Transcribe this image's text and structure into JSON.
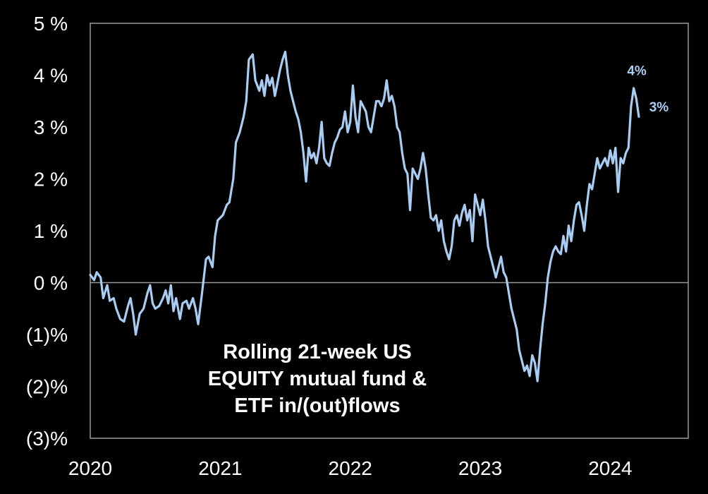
{
  "chart_data": {
    "type": "line",
    "title": "Rolling 21-week US EQUITY mutual fund & ETF in/(out)flows",
    "title_lines": [
      "Rolling 21-week US",
      "EQUITY mutual fund &",
      "ETF in/(out)flows"
    ],
    "y_ticks": [
      {
        "value": 5,
        "label": "5 %"
      },
      {
        "value": 4,
        "label": "4 %"
      },
      {
        "value": 3,
        "label": "3 %"
      },
      {
        "value": 2,
        "label": "2 %"
      },
      {
        "value": 1,
        "label": "1 %"
      },
      {
        "value": 0,
        "label": "0 %"
      },
      {
        "value": -1,
        "label": "(1)%"
      },
      {
        "value": -2,
        "label": "(2)%"
      },
      {
        "value": -3,
        "label": "(3)%"
      }
    ],
    "x_ticks": [
      {
        "value": 2020.0,
        "label": "2020"
      },
      {
        "value": 2021.0,
        "label": "2021"
      },
      {
        "value": 2022.0,
        "label": "2022"
      },
      {
        "value": 2023.0,
        "label": "2023"
      },
      {
        "value": 2024.0,
        "label": "2024"
      }
    ],
    "xlim": [
      2020.0,
      2024.6
    ],
    "ylim": [
      -3,
      5
    ],
    "grid": false,
    "zero_line": true,
    "line_color": "#a9cdf2",
    "axis_color": "#9a9a9a",
    "annotations": [
      {
        "label": "4%",
        "x": 2024.13,
        "y": 4.0
      },
      {
        "label": "3%",
        "x": 2024.3,
        "y": 3.3
      }
    ],
    "series": [
      {
        "points": [
          [
            2020.0,
            0.15
          ],
          [
            2020.03,
            0.05
          ],
          [
            2020.05,
            0.2
          ],
          [
            2020.08,
            0.1
          ],
          [
            2020.1,
            -0.3
          ],
          [
            2020.13,
            -0.05
          ],
          [
            2020.15,
            -0.35
          ],
          [
            2020.18,
            -0.3
          ],
          [
            2020.2,
            -0.5
          ],
          [
            2020.23,
            -0.7
          ],
          [
            2020.26,
            -0.75
          ],
          [
            2020.29,
            -0.45
          ],
          [
            2020.31,
            -0.3
          ],
          [
            2020.33,
            -0.6
          ],
          [
            2020.35,
            -1.0
          ],
          [
            2020.38,
            -0.6
          ],
          [
            2020.41,
            -0.5
          ],
          [
            2020.44,
            -0.2
          ],
          [
            2020.46,
            -0.05
          ],
          [
            2020.48,
            -0.4
          ],
          [
            2020.5,
            -0.5
          ],
          [
            2020.53,
            -0.45
          ],
          [
            2020.56,
            -0.3
          ],
          [
            2020.58,
            -0.15
          ],
          [
            2020.6,
            -0.4
          ],
          [
            2020.62,
            -0.05
          ],
          [
            2020.64,
            -0.55
          ],
          [
            2020.66,
            -0.3
          ],
          [
            2020.69,
            -0.7
          ],
          [
            2020.71,
            -0.4
          ],
          [
            2020.74,
            -0.35
          ],
          [
            2020.76,
            -0.5
          ],
          [
            2020.79,
            -0.3
          ],
          [
            2020.81,
            -0.5
          ],
          [
            2020.83,
            -0.8
          ],
          [
            2020.86,
            -0.2
          ],
          [
            2020.89,
            0.45
          ],
          [
            2020.91,
            0.5
          ],
          [
            2020.94,
            0.3
          ],
          [
            2020.96,
            0.9
          ],
          [
            2020.98,
            1.2
          ],
          [
            2021.02,
            1.3
          ],
          [
            2021.05,
            1.5
          ],
          [
            2021.07,
            1.55
          ],
          [
            2021.1,
            2.0
          ],
          [
            2021.12,
            2.7
          ],
          [
            2021.15,
            2.9
          ],
          [
            2021.18,
            3.2
          ],
          [
            2021.2,
            3.5
          ],
          [
            2021.22,
            4.3
          ],
          [
            2021.25,
            4.4
          ],
          [
            2021.27,
            3.9
          ],
          [
            2021.3,
            3.7
          ],
          [
            2021.32,
            3.9
          ],
          [
            2021.34,
            3.6
          ],
          [
            2021.36,
            4.0
          ],
          [
            2021.38,
            3.8
          ],
          [
            2021.4,
            3.95
          ],
          [
            2021.42,
            3.6
          ],
          [
            2021.44,
            3.85
          ],
          [
            2021.46,
            4.1
          ],
          [
            2021.48,
            4.3
          ],
          [
            2021.5,
            4.45
          ],
          [
            2021.52,
            4.0
          ],
          [
            2021.54,
            3.7
          ],
          [
            2021.56,
            3.5
          ],
          [
            2021.58,
            3.3
          ],
          [
            2021.6,
            3.15
          ],
          [
            2021.62,
            2.9
          ],
          [
            2021.64,
            2.5
          ],
          [
            2021.66,
            1.95
          ],
          [
            2021.68,
            2.6
          ],
          [
            2021.7,
            2.4
          ],
          [
            2021.72,
            2.5
          ],
          [
            2021.74,
            2.3
          ],
          [
            2021.76,
            2.6
          ],
          [
            2021.78,
            3.1
          ],
          [
            2021.8,
            2.4
          ],
          [
            2021.82,
            2.3
          ],
          [
            2021.84,
            2.25
          ],
          [
            2021.86,
            2.5
          ],
          [
            2021.88,
            2.7
          ],
          [
            2021.9,
            2.8
          ],
          [
            2021.92,
            2.95
          ],
          [
            2021.94,
            3.0
          ],
          [
            2021.96,
            3.3
          ],
          [
            2021.98,
            2.9
          ],
          [
            2022.0,
            3.1
          ],
          [
            2022.02,
            3.8
          ],
          [
            2022.04,
            3.2
          ],
          [
            2022.06,
            2.9
          ],
          [
            2022.08,
            3.5
          ],
          [
            2022.1,
            3.4
          ],
          [
            2022.12,
            3.3
          ],
          [
            2022.14,
            3.0
          ],
          [
            2022.16,
            2.9
          ],
          [
            2022.18,
            3.2
          ],
          [
            2022.2,
            3.5
          ],
          [
            2022.22,
            3.5
          ],
          [
            2022.24,
            3.4
          ],
          [
            2022.26,
            3.55
          ],
          [
            2022.28,
            3.9
          ],
          [
            2022.3,
            3.5
          ],
          [
            2022.32,
            3.6
          ],
          [
            2022.34,
            3.4
          ],
          [
            2022.36,
            3.0
          ],
          [
            2022.38,
            2.9
          ],
          [
            2022.4,
            2.5
          ],
          [
            2022.42,
            2.2
          ],
          [
            2022.44,
            2.1
          ],
          [
            2022.46,
            1.4
          ],
          [
            2022.48,
            2.2
          ],
          [
            2022.5,
            2.1
          ],
          [
            2022.52,
            2.0
          ],
          [
            2022.54,
            2.2
          ],
          [
            2022.56,
            2.5
          ],
          [
            2022.58,
            2.2
          ],
          [
            2022.6,
            1.7
          ],
          [
            2022.62,
            1.25
          ],
          [
            2022.64,
            1.2
          ],
          [
            2022.66,
            1.3
          ],
          [
            2022.68,
            1.0
          ],
          [
            2022.7,
            1.2
          ],
          [
            2022.72,
            0.8
          ],
          [
            2022.74,
            0.6
          ],
          [
            2022.76,
            0.45
          ],
          [
            2022.78,
            0.7
          ],
          [
            2022.8,
            1.2
          ],
          [
            2022.82,
            1.3
          ],
          [
            2022.84,
            1.1
          ],
          [
            2022.86,
            1.35
          ],
          [
            2022.88,
            1.5
          ],
          [
            2022.9,
            1.2
          ],
          [
            2022.92,
            1.4
          ],
          [
            2022.94,
            0.8
          ],
          [
            2022.96,
            1.7
          ],
          [
            2022.98,
            1.5
          ],
          [
            2023.0,
            1.3
          ],
          [
            2023.02,
            1.6
          ],
          [
            2023.04,
            1.2
          ],
          [
            2023.06,
            0.7
          ],
          [
            2023.08,
            0.5
          ],
          [
            2023.1,
            0.3
          ],
          [
            2023.12,
            0.1
          ],
          [
            2023.14,
            0.3
          ],
          [
            2023.16,
            0.5
          ],
          [
            2023.18,
            0.2
          ],
          [
            2023.2,
            0.1
          ],
          [
            2023.22,
            -0.2
          ],
          [
            2023.24,
            -0.5
          ],
          [
            2023.26,
            -0.7
          ],
          [
            2023.28,
            -0.9
          ],
          [
            2023.3,
            -1.3
          ],
          [
            2023.32,
            -1.5
          ],
          [
            2023.34,
            -1.7
          ],
          [
            2023.36,
            -1.6
          ],
          [
            2023.38,
            -1.8
          ],
          [
            2023.4,
            -1.4
          ],
          [
            2023.42,
            -1.55
          ],
          [
            2023.44,
            -1.9
          ],
          [
            2023.46,
            -1.3
          ],
          [
            2023.48,
            -0.8
          ],
          [
            2023.5,
            -0.4
          ],
          [
            2023.52,
            0.1
          ],
          [
            2023.54,
            0.4
          ],
          [
            2023.56,
            0.6
          ],
          [
            2023.58,
            0.7
          ],
          [
            2023.6,
            0.6
          ],
          [
            2023.62,
            0.55
          ],
          [
            2023.64,
            0.9
          ],
          [
            2023.66,
            0.6
          ],
          [
            2023.68,
            1.1
          ],
          [
            2023.7,
            0.8
          ],
          [
            2023.72,
            1.2
          ],
          [
            2023.74,
            1.5
          ],
          [
            2023.76,
            1.55
          ],
          [
            2023.78,
            1.3
          ],
          [
            2023.8,
            1.0
          ],
          [
            2023.82,
            1.5
          ],
          [
            2023.84,
            1.9
          ],
          [
            2023.86,
            1.8
          ],
          [
            2023.88,
            2.1
          ],
          [
            2023.9,
            2.4
          ],
          [
            2023.92,
            2.2
          ],
          [
            2023.94,
            2.3
          ],
          [
            2023.96,
            2.4
          ],
          [
            2023.98,
            2.25
          ],
          [
            2024.0,
            2.55
          ],
          [
            2024.02,
            2.3
          ],
          [
            2024.04,
            2.6
          ],
          [
            2024.06,
            1.75
          ],
          [
            2024.08,
            2.4
          ],
          [
            2024.1,
            2.3
          ],
          [
            2024.12,
            2.5
          ],
          [
            2024.14,
            2.6
          ],
          [
            2024.16,
            3.4
          ],
          [
            2024.18,
            3.75
          ],
          [
            2024.2,
            3.55
          ],
          [
            2024.22,
            3.2
          ]
        ]
      }
    ]
  }
}
